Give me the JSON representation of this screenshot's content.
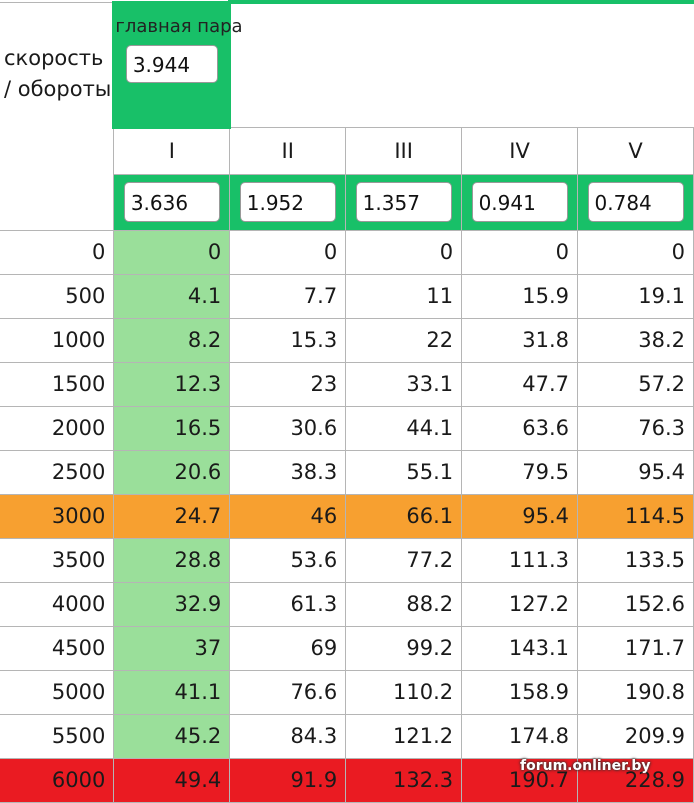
{
  "labels": {
    "corner": "скорость / обороты",
    "main_pair": "главная пара"
  },
  "main_pair_value": "3.944",
  "gears": [
    "I",
    "II",
    "III",
    "IV",
    "V"
  ],
  "ratios": [
    "3.636",
    "1.952",
    "1.357",
    "0.941",
    "0.784"
  ],
  "rows": [
    {
      "rpm": "0",
      "speeds": [
        "0",
        "0",
        "0",
        "0",
        "0"
      ]
    },
    {
      "rpm": "500",
      "speeds": [
        "4.1",
        "7.7",
        "11",
        "15.9",
        "19.1"
      ]
    },
    {
      "rpm": "1000",
      "speeds": [
        "8.2",
        "15.3",
        "22",
        "31.8",
        "38.2"
      ]
    },
    {
      "rpm": "1500",
      "speeds": [
        "12.3",
        "23",
        "33.1",
        "47.7",
        "57.2"
      ]
    },
    {
      "rpm": "2000",
      "speeds": [
        "16.5",
        "30.6",
        "44.1",
        "63.6",
        "76.3"
      ]
    },
    {
      "rpm": "2500",
      "speeds": [
        "20.6",
        "38.3",
        "55.1",
        "79.5",
        "95.4"
      ]
    },
    {
      "rpm": "3000",
      "speeds": [
        "24.7",
        "46",
        "66.1",
        "95.4",
        "114.5"
      ]
    },
    {
      "rpm": "3500",
      "speeds": [
        "28.8",
        "53.6",
        "77.2",
        "111.3",
        "133.5"
      ]
    },
    {
      "rpm": "4000",
      "speeds": [
        "32.9",
        "61.3",
        "88.2",
        "127.2",
        "152.6"
      ]
    },
    {
      "rpm": "4500",
      "speeds": [
        "37",
        "69",
        "99.2",
        "143.1",
        "171.7"
      ]
    },
    {
      "rpm": "5000",
      "speeds": [
        "41.1",
        "76.6",
        "110.2",
        "158.9",
        "190.8"
      ]
    },
    {
      "rpm": "5500",
      "speeds": [
        "45.2",
        "84.3",
        "121.2",
        "174.8",
        "209.9"
      ]
    },
    {
      "rpm": "6000",
      "speeds": [
        "49.4",
        "91.9",
        "132.3",
        "190.7",
        "228.9"
      ]
    }
  ],
  "highlight": {
    "orange_row": "3000",
    "red_row": "6000"
  },
  "colors": {
    "header_green": "#18c068",
    "column_green": "#9adf9a",
    "orange": "#f7a030",
    "red": "#ea1b22"
  },
  "watermark": "forum.onliner.by"
}
